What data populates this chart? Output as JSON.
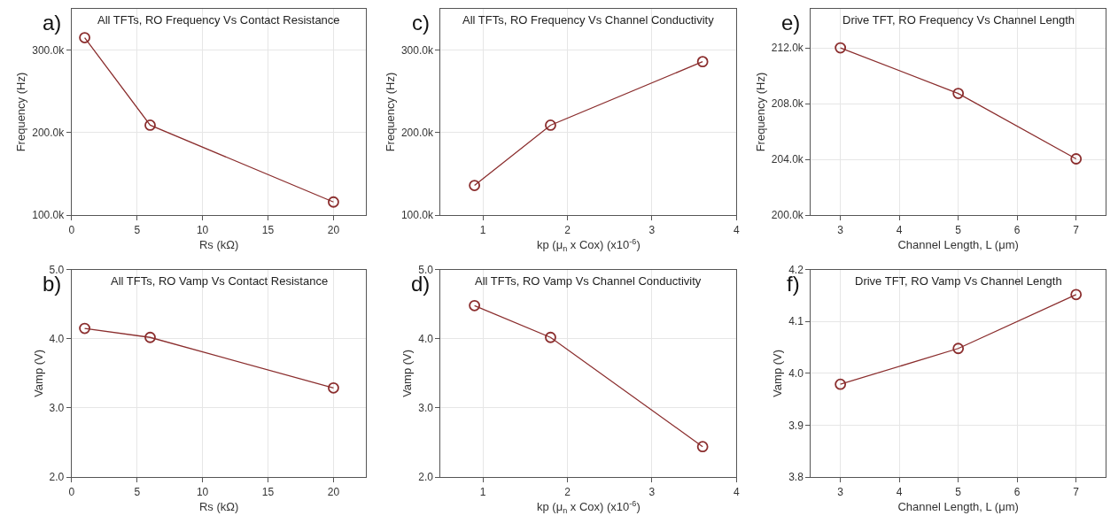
{
  "chart_data": [
    {
      "type": "line",
      "title": "All TFTs, RO Frequency Vs Contact Resistance",
      "annotations": [
        "a)"
      ],
      "xlabel": "Rs (kΩ)",
      "ylabel": "Frequency (Hz)",
      "x": [
        1,
        6,
        20
      ],
      "series": [
        {
          "color": "#8b2e2e",
          "values": [
            315000,
            209000,
            116000
          ]
        }
      ],
      "xlim": [
        0,
        22.5
      ],
      "xticks": [
        0,
        5,
        10,
        15,
        20
      ],
      "ylim": [
        100000,
        350000
      ],
      "yticks": [
        {
          "value": 100000,
          "label": "100.0k"
        },
        {
          "value": 200000,
          "label": "200.0k"
        },
        {
          "value": 300000,
          "label": "300.0k"
        }
      ],
      "grid": true,
      "marker": "circle",
      "line_style": "solid"
    },
    {
      "type": "line",
      "title": "All TFTs, RO Frequency Vs Channel Conductivity",
      "annotations": [
        "c)"
      ],
      "xlabel": "kp (μ$_{n}$ x Cox) (x10$^{-6}$)",
      "ylabel": "Frequency (Hz)",
      "x": [
        0.9,
        1.8,
        3.6
      ],
      "series": [
        {
          "color": "#8b2e2e",
          "values": [
            136000,
            209000,
            286000
          ]
        }
      ],
      "xlim": [
        0.5,
        4
      ],
      "xticks": [
        1,
        2,
        3,
        4
      ],
      "ylim": [
        100000,
        350000
      ],
      "yticks": [
        {
          "value": 100000,
          "label": "100.0k"
        },
        {
          "value": 200000,
          "label": "200.0k"
        },
        {
          "value": 300000,
          "label": "300.0k"
        }
      ],
      "grid": true,
      "marker": "circle",
      "line_style": "solid"
    },
    {
      "type": "line",
      "title": "Drive TFT, RO Frequency Vs Channel Length",
      "annotations": [
        "e)"
      ],
      "xlabel": "Channel Length, L (μm)",
      "ylabel": "Frequency (Hz)",
      "x": [
        3,
        5,
        7
      ],
      "series": [
        {
          "color": "#8b2e2e",
          "values": [
            212000,
            208730,
            204040
          ]
        }
      ],
      "xlim": [
        2.5,
        7.5
      ],
      "xticks": [
        3,
        4,
        5,
        6,
        7
      ],
      "ylim": [
        200000,
        214800
      ],
      "yticks": [
        {
          "value": 200000,
          "label": "200.0k"
        },
        {
          "value": 204000,
          "label": "204.0k"
        },
        {
          "value": 208000,
          "label": "208.0k"
        },
        {
          "value": 212000,
          "label": "212.0k"
        }
      ],
      "grid": true,
      "marker": "circle",
      "line_style": "solid"
    },
    {
      "type": "line",
      "title": "All TFTs, RO Vamp Vs Contact Resistance",
      "annotations": [
        "b)"
      ],
      "xlabel": "Rs (kΩ)",
      "ylabel": "Vamp (V)",
      "x": [
        1,
        6,
        20
      ],
      "series": [
        {
          "color": "#8b2e2e",
          "values": [
            4.15,
            4.02,
            3.29
          ]
        }
      ],
      "xlim": [
        0,
        22.5
      ],
      "xticks": [
        0,
        5,
        10,
        15,
        20
      ],
      "ylim": [
        2,
        5
      ],
      "yticks": [
        {
          "value": 2,
          "label": "2.0"
        },
        {
          "value": 3,
          "label": "3.0"
        },
        {
          "value": 4,
          "label": "4.0"
        },
        {
          "value": 5,
          "label": "5.0"
        }
      ],
      "grid": true,
      "marker": "circle",
      "line_style": "solid"
    },
    {
      "type": "line",
      "title": "All TFTs, RO Vamp Vs Channel Conductivity",
      "annotations": [
        "d)"
      ],
      "xlabel": "kp (μ$_{n}$ x Cox) (x10$^{-6}$)",
      "ylabel": "Vamp (V)",
      "x": [
        0.9,
        1.8,
        3.6
      ],
      "series": [
        {
          "color": "#8b2e2e",
          "values": [
            4.48,
            4.02,
            2.44
          ]
        }
      ],
      "xlim": [
        0.5,
        4
      ],
      "xticks": [
        1,
        2,
        3,
        4
      ],
      "ylim": [
        2,
        5
      ],
      "yticks": [
        {
          "value": 2,
          "label": "2.0"
        },
        {
          "value": 3,
          "label": "3.0"
        },
        {
          "value": 4,
          "label": "4.0"
        },
        {
          "value": 5,
          "label": "5.0"
        }
      ],
      "grid": true,
      "marker": "circle",
      "line_style": "solid"
    },
    {
      "type": "line",
      "title": "Drive TFT, RO Vamp Vs Channel Length",
      "annotations": [
        "f)"
      ],
      "xlabel": "Channel Length, L (μm)",
      "ylabel": "Vamp (V)",
      "x": [
        3,
        5,
        7
      ],
      "series": [
        {
          "color": "#8b2e2e",
          "values": [
            3.979,
            4.048,
            4.152
          ]
        }
      ],
      "xlim": [
        2.5,
        7.5
      ],
      "xticks": [
        3,
        4,
        5,
        6,
        7
      ],
      "ylim": [
        3.8,
        4.2
      ],
      "yticks": [
        {
          "value": 3.8,
          "label": "3.8"
        },
        {
          "value": 3.9,
          "label": "3.9"
        },
        {
          "value": 4.0,
          "label": "4.0"
        },
        {
          "value": 4.1,
          "label": "4.1"
        },
        {
          "value": 4.2,
          "label": "4.2"
        }
      ],
      "grid": true,
      "marker": "circle",
      "line_style": "solid"
    }
  ]
}
